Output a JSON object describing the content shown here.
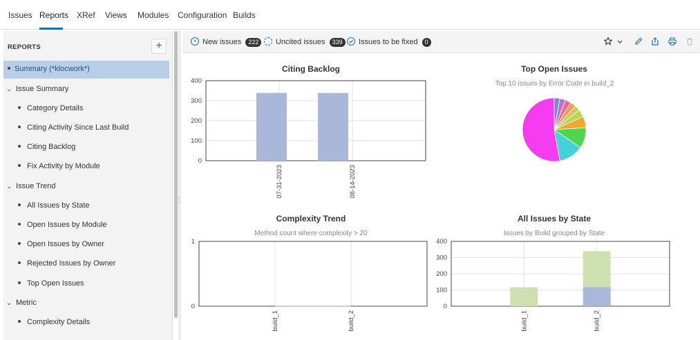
{
  "nav": {
    "tabs": [
      "Issues",
      "Reports",
      "XRef",
      "Views",
      "Modules",
      "Configuration",
      "Builds"
    ],
    "active": "Reports"
  },
  "sidebar": {
    "header": "REPORTS",
    "add_label": "+",
    "items": [
      {
        "label": "Summary (*klocwork*)",
        "kind": "leaf-top",
        "selected": true
      },
      {
        "label": "Issue Summary",
        "kind": "group"
      },
      {
        "label": "Category Details",
        "kind": "leaf"
      },
      {
        "label": "Citing Activity Since Last Build",
        "kind": "leaf"
      },
      {
        "label": "Citing Backlog",
        "kind": "leaf"
      },
      {
        "label": "Fix Activity by Module",
        "kind": "leaf"
      },
      {
        "label": "Issue Trend",
        "kind": "group"
      },
      {
        "label": "All Issues by State",
        "kind": "leaf"
      },
      {
        "label": "Open Issues by Module",
        "kind": "leaf"
      },
      {
        "label": "Open Issues by Owner",
        "kind": "leaf"
      },
      {
        "label": "Rejected Issues by Owner",
        "kind": "leaf"
      },
      {
        "label": "Top Open Issues",
        "kind": "leaf"
      },
      {
        "label": "Metric",
        "kind": "group"
      },
      {
        "label": "Complexity Details",
        "kind": "leaf"
      }
    ]
  },
  "toolbar": {
    "filters": [
      {
        "label": "New issues",
        "count": "222"
      },
      {
        "label": "Uncited issues",
        "count": "339"
      },
      {
        "label": "Issues to be fixed",
        "count": "0"
      }
    ],
    "icons": [
      "star-icon",
      "chevron-down-icon",
      "edit-icon",
      "share-icon",
      "print-icon",
      "delete-icon"
    ]
  },
  "chart_data": [
    {
      "type": "bar",
      "title": "Citing Backlog",
      "subtitle": "",
      "categories": [
        "07-31-2023",
        "08-14-2023"
      ],
      "values": [
        339,
        339
      ],
      "yticks": [
        0,
        100,
        200,
        300,
        400
      ],
      "ylim": [
        0,
        400
      ],
      "color": "#a9b8d8",
      "grid": true
    },
    {
      "type": "pie",
      "title": "Top Open Issues",
      "subtitle": "Top 10 issues by Error Code in build_2",
      "slices": [
        {
          "value": 3,
          "color": "#6b8ed6"
        },
        {
          "value": 3,
          "color": "#c06fd6"
        },
        {
          "value": 3,
          "color": "#f06a8a"
        },
        {
          "value": 3,
          "color": "#f39a5e"
        },
        {
          "value": 3,
          "color": "#d9c45a"
        },
        {
          "value": 4,
          "color": "#b6d75a"
        },
        {
          "value": 6,
          "color": "#f3a72c"
        },
        {
          "value": 11,
          "color": "#4fd64a"
        },
        {
          "value": 13,
          "color": "#43d2d8"
        },
        {
          "value": 55,
          "color": "#f53bf0"
        }
      ]
    },
    {
      "type": "line",
      "title": "Complexity Trend",
      "subtitle": "Method count where complexity > 20",
      "categories": [
        "build_1",
        "build_2"
      ],
      "values": [
        0,
        0
      ],
      "yticks": [
        0,
        1
      ],
      "ylim": [
        0,
        1
      ],
      "grid": true
    },
    {
      "type": "bar",
      "stacked": true,
      "title": "All Issues by State",
      "subtitle": "Issues by Build grouped by State",
      "categories": [
        "build_1",
        "build_2"
      ],
      "series": [
        {
          "values": [
            0,
            117
          ],
          "color": "#a9b8d8"
        },
        {
          "values": [
            117,
            222
          ],
          "color": "#cfe0b0"
        }
      ],
      "yticks": [
        0,
        100,
        200,
        300,
        400
      ],
      "ylim": [
        0,
        400
      ],
      "grid": true
    }
  ]
}
